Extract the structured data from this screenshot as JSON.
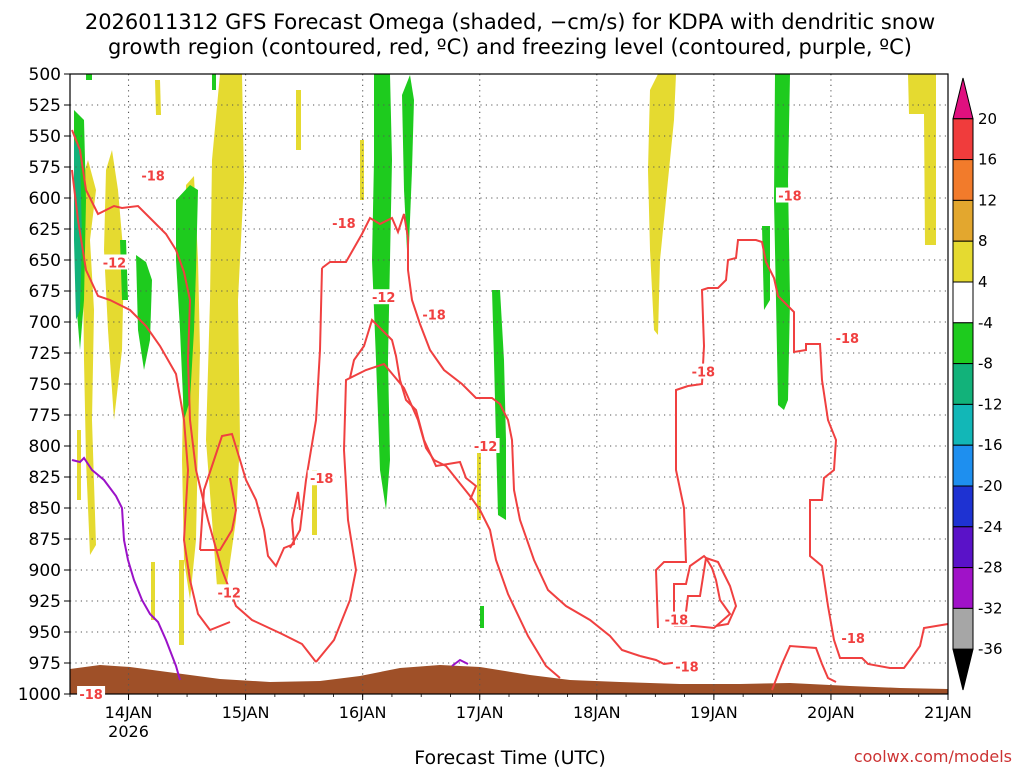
{
  "chart_data": {
    "type": "contour",
    "title_line1": "2026011312 GFS Forecast Omega (shaded, −cm/s) for KDPA with dendritic snow",
    "title_line2": "growth region (contoured, red, ºC) and freezing level (contoured, purple, ºC)",
    "xlabel": "Forecast Time (UTC)",
    "credit": "coolwx.com/models",
    "y_ticks": [
      500,
      525,
      550,
      575,
      600,
      625,
      650,
      675,
      700,
      725,
      750,
      775,
      800,
      825,
      850,
      875,
      900,
      925,
      950,
      975,
      1000
    ],
    "y_range": [
      500,
      1000
    ],
    "x_range_days": [
      13.5,
      21.0
    ],
    "x_ticks": [
      {
        "day": 14,
        "label": "14JAN",
        "sublabel": "2026"
      },
      {
        "day": 15,
        "label": "15JAN",
        "sublabel": ""
      },
      {
        "day": 16,
        "label": "16JAN",
        "sublabel": ""
      },
      {
        "day": 17,
        "label": "17JAN",
        "sublabel": ""
      },
      {
        "day": 18,
        "label": "18JAN",
        "sublabel": ""
      },
      {
        "day": 19,
        "label": "19JAN",
        "sublabel": ""
      },
      {
        "day": 20,
        "label": "20JAN",
        "sublabel": ""
      },
      {
        "day": 21,
        "label": "21JAN",
        "sublabel": ""
      }
    ],
    "colorbar": {
      "labels": [
        "20",
        "16",
        "12",
        "8",
        "4",
        "-4",
        "-8",
        "-12",
        "-16",
        "-20",
        "-24",
        "-28",
        "-32",
        "-36"
      ],
      "colors": [
        "#e0107f",
        "#f03c3c",
        "#f27b2b",
        "#e3a72e",
        "#e5da30",
        "#ffffff",
        "#1ecb1e",
        "#12b27a",
        "#12b7b7",
        "#1e8fef",
        "#1e32d2",
        "#5a12c8",
        "#a012c8",
        "#a6a6a6",
        "#000000"
      ]
    },
    "red_contour_labels": [
      {
        "text": "-18",
        "day": 13.68,
        "p": 1000
      },
      {
        "text": "-18",
        "day": 14.21,
        "p": 582
      },
      {
        "text": "-12",
        "day": 13.88,
        "p": 652
      },
      {
        "text": "-12",
        "day": 14.86,
        "p": 918
      },
      {
        "text": "-18",
        "day": 15.65,
        "p": 826
      },
      {
        "text": "-18",
        "day": 15.84,
        "p": 620
      },
      {
        "text": "-12",
        "day": 16.18,
        "p": 680
      },
      {
        "text": "-18",
        "day": 16.61,
        "p": 694
      },
      {
        "text": "-12",
        "day": 17.05,
        "p": 800
      },
      {
        "text": "-18",
        "day": 18.68,
        "p": 940
      },
      {
        "text": "-18",
        "day": 18.77,
        "p": 978
      },
      {
        "text": "-18",
        "day": 18.91,
        "p": 740
      },
      {
        "text": "-18",
        "day": 19.65,
        "p": 598
      },
      {
        "text": "-18",
        "day": 20.14,
        "p": 713
      },
      {
        "text": "-18",
        "day": 20.19,
        "p": 955
      }
    ]
  }
}
